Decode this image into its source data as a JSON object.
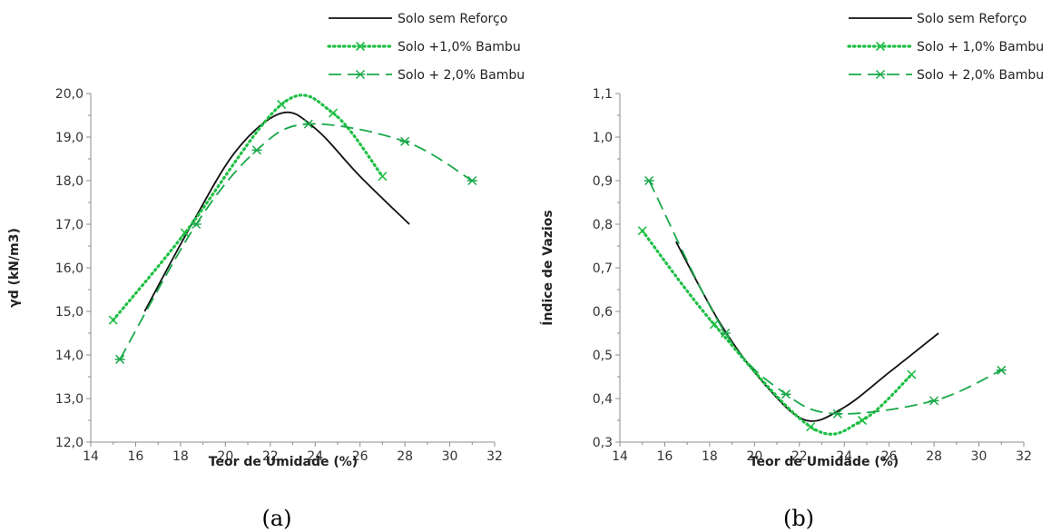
{
  "chart_data": [
    {
      "type": "line",
      "panel_label": "(a)",
      "xlabel": "Teor de Umidade (%)",
      "ylabel": "γd (kN/m3)",
      "xlim": [
        14,
        32
      ],
      "ylim": [
        12,
        20
      ],
      "x_ticks": [
        "14",
        "16",
        "18",
        "20",
        "22",
        "24",
        "26",
        "28",
        "30",
        "32"
      ],
      "y_ticks": [
        "12,0",
        "13,0",
        "14,0",
        "15,0",
        "16,0",
        "17,0",
        "18,0",
        "19,0",
        "20,0"
      ],
      "legend_position": "top-right",
      "series": [
        {
          "name": "Solo sem Reforço",
          "color": "#111111",
          "style": "solid",
          "marker": "none",
          "x": [
            16.4,
            18.5,
            20.5,
            22.5,
            24.0,
            26.0,
            28.2
          ],
          "y": [
            15.0,
            17.0,
            18.7,
            19.55,
            19.2,
            18.1,
            17.0
          ]
        },
        {
          "name": "Solo +1,0% Bambu",
          "color": "#1fbf45",
          "style": "dotted",
          "marker": "x",
          "x": [
            15.0,
            18.2,
            22.5,
            24.8,
            27.0
          ],
          "y": [
            14.8,
            16.8,
            19.75,
            19.55,
            18.1
          ]
        },
        {
          "name": "Solo + 2,0% Bambu",
          "color": "#1aa84a",
          "style": "dashed",
          "marker": "star",
          "x": [
            15.3,
            18.7,
            21.4,
            23.7,
            28.0,
            31.0
          ],
          "y": [
            13.9,
            17.0,
            18.7,
            19.3,
            18.9,
            18.0
          ]
        }
      ]
    },
    {
      "type": "line",
      "panel_label": "(b)",
      "xlabel": "Teor de Umidade (%)",
      "ylabel": "Índice de Vazios",
      "xlim": [
        14,
        32
      ],
      "ylim": [
        0.3,
        1.1
      ],
      "x_ticks": [
        "14",
        "16",
        "18",
        "20",
        "22",
        "24",
        "26",
        "28",
        "30",
        "32"
      ],
      "y_ticks": [
        "0,3",
        "0,4",
        "0,5",
        "0,6",
        "0,7",
        "0,8",
        "0,9",
        "1,0",
        "1,1"
      ],
      "legend_position": "top-right",
      "series": [
        {
          "name": "Solo sem Reforço",
          "color": "#111111",
          "style": "solid",
          "marker": "none",
          "x": [
            16.5,
            18.5,
            20.5,
            22.3,
            24.0,
            26.0,
            28.2
          ],
          "y": [
            0.76,
            0.57,
            0.43,
            0.35,
            0.38,
            0.46,
            0.55
          ]
        },
        {
          "name": "Solo + 1,0% Bambu",
          "color": "#1fbf45",
          "style": "dotted",
          "marker": "x",
          "x": [
            15.0,
            18.2,
            22.5,
            24.8,
            27.0
          ],
          "y": [
            0.785,
            0.57,
            0.335,
            0.35,
            0.455
          ]
        },
        {
          "name": "Solo + 2,0% Bambu",
          "color": "#1aa84a",
          "style": "dashed",
          "marker": "star",
          "x": [
            15.3,
            18.7,
            21.4,
            23.7,
            28.0,
            31.0
          ],
          "y": [
            0.9,
            0.55,
            0.41,
            0.365,
            0.395,
            0.465
          ]
        }
      ]
    }
  ]
}
